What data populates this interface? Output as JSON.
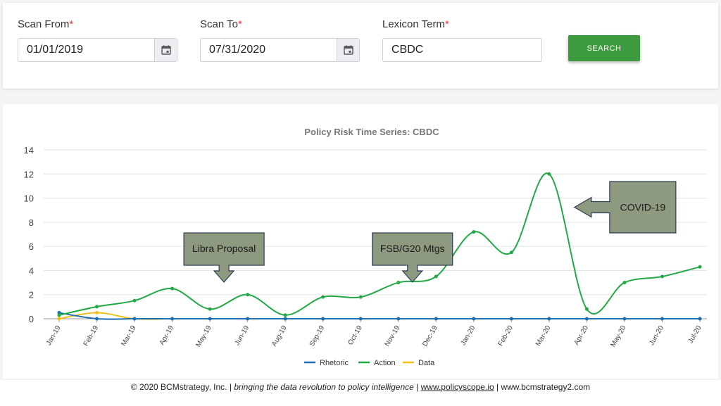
{
  "search": {
    "scan_from": {
      "label": "Scan From",
      "required_mark": "*",
      "value": "01/01/2019"
    },
    "scan_to": {
      "label": "Scan To",
      "required_mark": "*",
      "value": "07/31/2020"
    },
    "lexicon": {
      "label": "Lexicon Term",
      "required_mark": "*",
      "value": "CBDC"
    },
    "button_label": "SEARCH"
  },
  "colors": {
    "rhetoric": "#1f6db3",
    "action": "#22a845",
    "data": "#f0c020",
    "callout_fill": "#8d9a80",
    "button": "#3e9a3e"
  },
  "chart_data": {
    "type": "line",
    "title": "Policy Risk Time Series: CBDC",
    "xlabel": "",
    "ylabel": "",
    "ylim": [
      0,
      14
    ],
    "yticks": [
      0,
      2,
      4,
      6,
      8,
      10,
      12,
      14
    ],
    "grid": true,
    "legend_placement": "bottom",
    "categories": [
      "Jan-19",
      "Feb-19",
      "Mar-19",
      "Apr-19",
      "May-19",
      "Jun-19",
      "Aug-19",
      "Sep-19",
      "Oct-19",
      "Nov-19",
      "Dec-19",
      "Jan-20",
      "Feb-20",
      "Mar-20",
      "Apr-20",
      "May-20",
      "Jun-20",
      "Jul-20"
    ],
    "series": [
      {
        "name": "Rhetoric",
        "values": [
          0.5,
          0,
          0,
          0,
          0,
          0,
          0,
          0,
          0,
          0,
          0,
          0,
          0,
          0,
          0,
          0,
          0,
          0
        ]
      },
      {
        "name": "Action",
        "values": [
          0.3,
          1.0,
          1.5,
          2.5,
          0.8,
          2.0,
          0.3,
          1.8,
          1.8,
          3.0,
          3.5,
          7.2,
          5.5,
          12.0,
          0.8,
          3.0,
          3.5,
          4.3
        ]
      },
      {
        "name": "Data",
        "values": [
          0,
          0.5,
          0,
          0,
          0,
          0,
          0,
          0,
          0,
          0,
          0,
          0,
          0,
          0,
          0,
          0,
          0,
          0
        ]
      }
    ],
    "annotations": [
      {
        "text": "Libra Proposal",
        "pointer": "down",
        "category": "May-19"
      },
      {
        "text": "FSB/G20 Mtgs",
        "pointer": "down",
        "category": "Nov-19"
      },
      {
        "text": "COVID-19",
        "pointer": "left",
        "category": "Mar-20"
      }
    ]
  },
  "footer": {
    "copyright": "© 2020 BCMstrategy, Inc. | ",
    "tagline": "bringing the data revolution to policy intelligence",
    "sep1": " | ",
    "link1": "www.policyscope.io",
    "sep2": " | ",
    "link2": "www.bcmstrategy2.com"
  }
}
